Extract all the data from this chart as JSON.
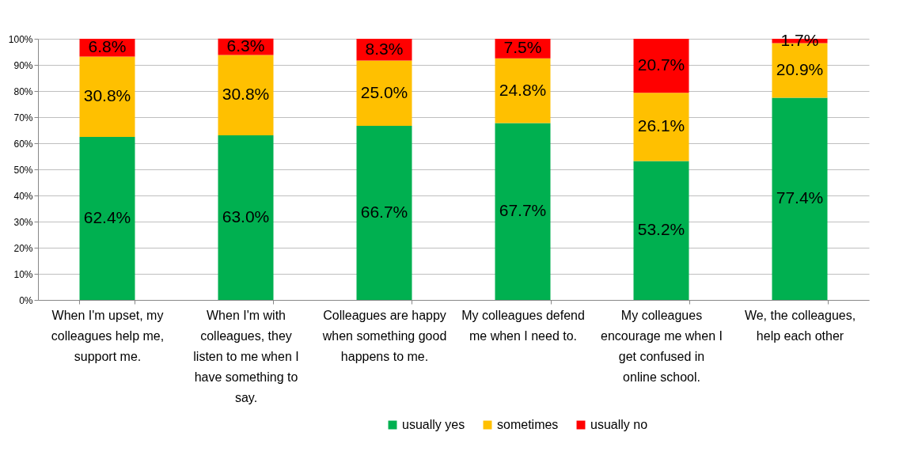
{
  "chart_data": {
    "type": "bar",
    "stacked": true,
    "grid": "y",
    "legend": "bottom",
    "categories": [
      "When I'm upset, my colleagues help me, support me.",
      "When I'm with colleagues, they listen to me when I have something to say.",
      "Colleagues are happy when something good happens to me.",
      "My colleagues defend me when I need to.",
      "My colleagues encourage me when I get confused in online school.",
      "We, the colleagues, help each other"
    ],
    "ylim": [
      0,
      100
    ],
    "yticks": [
      {
        "value": 0,
        "label": "0%"
      },
      {
        "value": 10,
        "label": "10%"
      },
      {
        "value": 20,
        "label": "20%"
      },
      {
        "value": 30,
        "label": "30%"
      },
      {
        "value": 40,
        "label": "40%"
      },
      {
        "value": 50,
        "label": "50%"
      },
      {
        "value": 60,
        "label": "60%"
      },
      {
        "value": 70,
        "label": "70%"
      },
      {
        "value": 80,
        "label": "80%"
      },
      {
        "value": 90,
        "label": "90%"
      },
      {
        "value": 100,
        "label": "100%"
      }
    ],
    "series": [
      {
        "name": "usually yes",
        "color": "#00b050",
        "values": [
          62.4,
          63.0,
          66.7,
          67.7,
          53.2,
          77.4
        ],
        "value_labels": [
          "62.4%",
          "63.0%",
          "66.7%",
          "67.7%",
          "53.2%",
          "77.4%"
        ]
      },
      {
        "name": "sometimes",
        "color": "#ffc000",
        "values": [
          30.8,
          30.8,
          25.0,
          24.8,
          26.1,
          20.9
        ],
        "value_labels": [
          "30.8%",
          "30.8%",
          "25.0%",
          "24.8%",
          "26.1%",
          "20.9%"
        ]
      },
      {
        "name": "usually no",
        "color": "#ff0000",
        "values": [
          6.8,
          6.3,
          8.3,
          7.5,
          20.7,
          1.7
        ],
        "value_labels": [
          "6.8%",
          "6.3%",
          "8.3%",
          "7.5%",
          "20.7%",
          "1.7%"
        ]
      }
    ]
  }
}
